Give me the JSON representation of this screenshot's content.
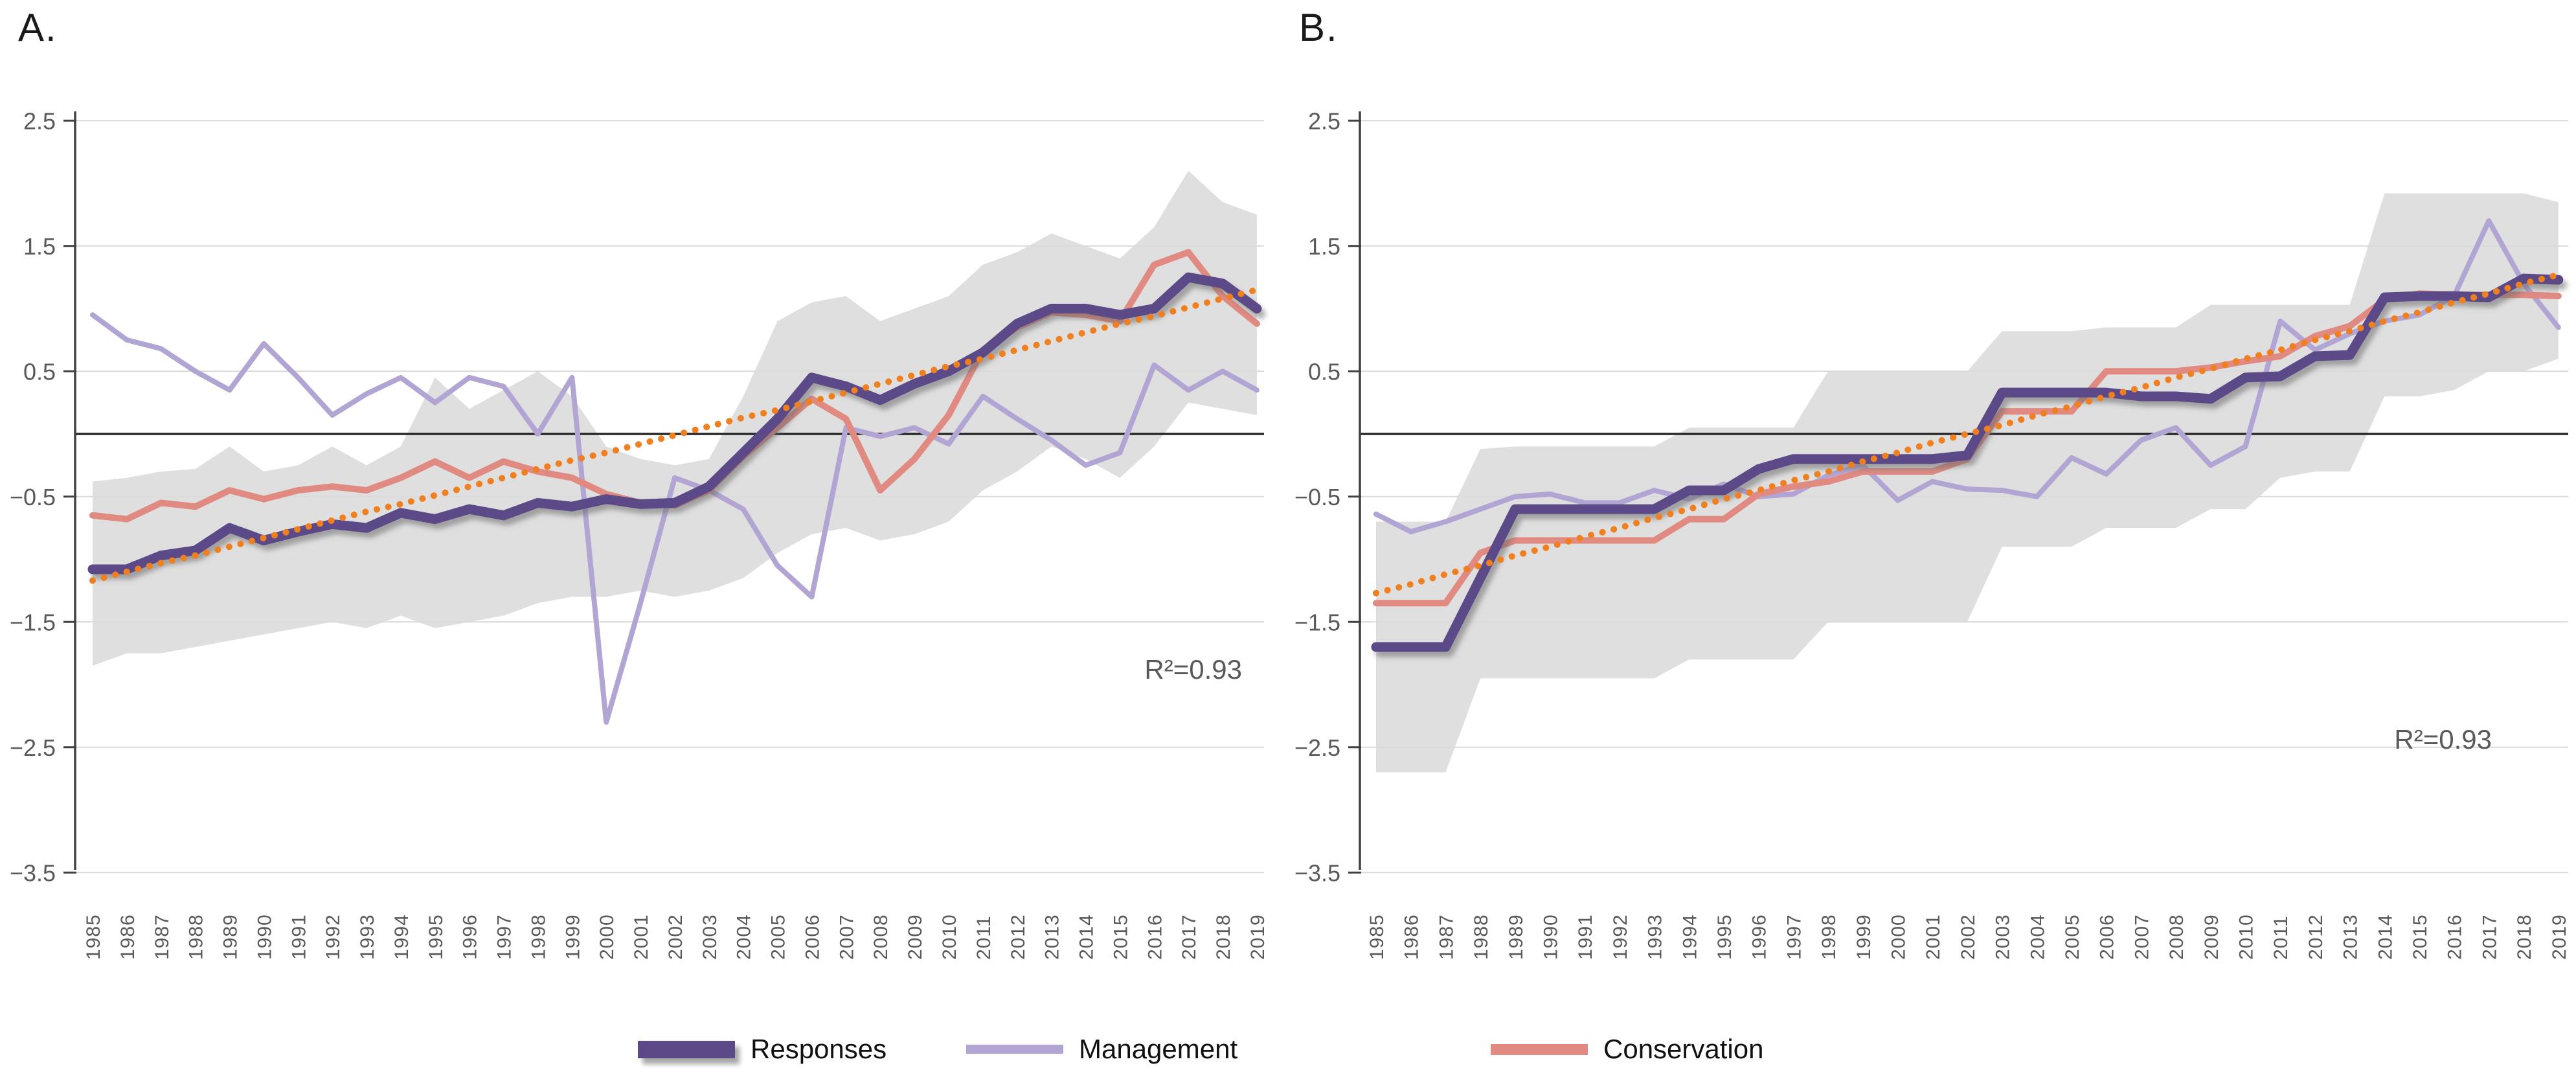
{
  "figure_bg": "#ffffff",
  "colors": {
    "responses": "#5b4a87",
    "management": "#b2a5d3",
    "conservation": "#e08a82",
    "trend": "#f0801f",
    "band": "#d9d9d9",
    "gridline": "#d9d9d9",
    "zero_line": "#262626",
    "axis": "#404040",
    "tick_text": "#595959"
  },
  "legend": {
    "position": "bottom-center",
    "items": [
      {
        "label": "Responses",
        "color": "#5b4a87"
      },
      {
        "label": "Management",
        "color": "#b2a5d3"
      },
      {
        "label": "Conservation",
        "color": "#e08a82"
      }
    ]
  },
  "chart_data": [
    {
      "type": "line",
      "panel_label": "A.",
      "r2_label": "R²=0.93",
      "xlabel": "",
      "ylabel": "",
      "ylim": [
        -3.5,
        2.5
      ],
      "grid": true,
      "yticks": [
        "2.5",
        "1.5",
        "0.5",
        "−0.5",
        "−1.5",
        "−2.5",
        "−3.5"
      ],
      "ytick_values": [
        2.5,
        1.5,
        0.5,
        -0.5,
        -1.5,
        -2.5,
        -3.5
      ],
      "x": [
        1985,
        1986,
        1987,
        1988,
        1989,
        1990,
        1991,
        1992,
        1993,
        1994,
        1995,
        1996,
        1997,
        1998,
        1999,
        2000,
        2001,
        2002,
        2003,
        2004,
        2005,
        2006,
        2007,
        2008,
        2009,
        2010,
        2011,
        2012,
        2013,
        2014,
        2015,
        2016,
        2017,
        2018,
        2019
      ],
      "band": {
        "color": "#d9d9d9",
        "opacity": 0.85,
        "top": [
          -0.38,
          -0.35,
          -0.3,
          -0.28,
          -0.1,
          -0.3,
          -0.25,
          -0.1,
          -0.25,
          -0.1,
          0.45,
          0.2,
          0.35,
          0.5,
          0.3,
          -0.1,
          -0.2,
          -0.25,
          -0.2,
          0.3,
          0.9,
          1.05,
          1.1,
          0.9,
          1.0,
          1.1,
          1.35,
          1.45,
          1.6,
          1.5,
          1.4,
          1.65,
          2.1,
          1.85,
          1.75
        ],
        "bottom": [
          -1.85,
          -1.75,
          -1.75,
          -1.7,
          -1.65,
          -1.6,
          -1.55,
          -1.5,
          -1.55,
          -1.45,
          -1.55,
          -1.5,
          -1.45,
          -1.35,
          -1.3,
          -1.3,
          -1.25,
          -1.3,
          -1.25,
          -1.15,
          -0.95,
          -0.8,
          -0.75,
          -0.85,
          -0.8,
          -0.7,
          -0.45,
          -0.3,
          -0.1,
          -0.2,
          -0.35,
          -0.1,
          0.25,
          0.2,
          0.15
        ]
      },
      "series": [
        {
          "name": "Management",
          "color": "#b2a5d3",
          "width": 8,
          "values": [
            0.95,
            0.75,
            0.68,
            0.5,
            0.35,
            0.72,
            0.45,
            0.15,
            0.32,
            0.45,
            0.25,
            0.45,
            0.38,
            0.0,
            0.45,
            -2.3,
            -1.35,
            -0.35,
            -0.45,
            -0.6,
            -1.05,
            -1.3,
            0.05,
            -0.02,
            0.05,
            -0.08,
            0.3,
            0.12,
            -0.05,
            -0.25,
            -0.15,
            0.55,
            0.35,
            0.5,
            0.35
          ]
        },
        {
          "name": "Conservation",
          "color": "#e08a82",
          "width": 10,
          "values": [
            -0.65,
            -0.68,
            -0.55,
            -0.58,
            -0.45,
            -0.52,
            -0.45,
            -0.42,
            -0.45,
            -0.35,
            -0.22,
            -0.35,
            -0.22,
            -0.3,
            -0.35,
            -0.48,
            -0.55,
            -0.57,
            -0.45,
            -0.18,
            0.05,
            0.28,
            0.12,
            -0.45,
            -0.2,
            0.15,
            0.67,
            0.85,
            0.97,
            0.95,
            0.9,
            1.35,
            1.45,
            1.1,
            0.88
          ]
        },
        {
          "name": "Responses",
          "color": "#5b4a87",
          "width": 15,
          "shadow": true,
          "values": [
            -1.08,
            -1.08,
            -0.97,
            -0.93,
            -0.75,
            -0.85,
            -0.78,
            -0.72,
            -0.75,
            -0.63,
            -0.68,
            -0.6,
            -0.65,
            -0.55,
            -0.58,
            -0.52,
            -0.56,
            -0.55,
            -0.42,
            -0.15,
            0.12,
            0.45,
            0.38,
            0.27,
            0.4,
            0.5,
            0.65,
            0.88,
            1.0,
            1.0,
            0.95,
            1.0,
            1.25,
            1.2,
            1.0
          ]
        },
        {
          "name": "Trend",
          "color": "#f0801f",
          "width": 10,
          "dotted": true,
          "values": [
            -1.17,
            -1.1,
            -1.03,
            -0.97,
            -0.9,
            -0.83,
            -0.76,
            -0.69,
            -0.62,
            -0.56,
            -0.49,
            -0.42,
            -0.35,
            -0.28,
            -0.21,
            -0.15,
            -0.08,
            -0.01,
            0.06,
            0.13,
            0.19,
            0.26,
            0.33,
            0.4,
            0.47,
            0.54,
            0.6,
            0.67,
            0.74,
            0.81,
            0.88,
            0.94,
            1.01,
            1.08,
            1.15
          ]
        }
      ]
    },
    {
      "type": "line",
      "panel_label": "B.",
      "r2_label": "R²=0.93",
      "xlabel": "",
      "ylabel": "",
      "ylim": [
        -3.5,
        2.5
      ],
      "grid": true,
      "yticks": [
        "2.5",
        "1.5",
        "0.5",
        "−0.5",
        "−1.5",
        "−2.5",
        "−3.5"
      ],
      "ytick_values": [
        2.5,
        1.5,
        0.5,
        -0.5,
        -1.5,
        -2.5,
        -3.5
      ],
      "x": [
        1985,
        1986,
        1987,
        1988,
        1989,
        1990,
        1991,
        1992,
        1993,
        1994,
        1995,
        1996,
        1997,
        1998,
        1999,
        2000,
        2001,
        2002,
        2003,
        2004,
        2005,
        2006,
        2007,
        2008,
        2009,
        2010,
        2011,
        2012,
        2013,
        2014,
        2015,
        2016,
        2017,
        2018,
        2019
      ],
      "band": {
        "color": "#d9d9d9",
        "opacity": 0.85,
        "top": [
          -0.7,
          -0.7,
          -0.7,
          -0.12,
          -0.1,
          -0.1,
          -0.1,
          -0.1,
          -0.1,
          0.05,
          0.05,
          0.05,
          0.05,
          0.5,
          0.5,
          0.5,
          0.5,
          0.5,
          0.82,
          0.82,
          0.82,
          0.85,
          0.85,
          0.85,
          1.03,
          1.03,
          1.03,
          1.03,
          1.03,
          1.92,
          1.92,
          1.92,
          1.92,
          1.92,
          1.85
        ],
        "bottom": [
          -2.7,
          -2.7,
          -2.7,
          -1.95,
          -1.95,
          -1.95,
          -1.95,
          -1.95,
          -1.95,
          -1.8,
          -1.8,
          -1.8,
          -1.8,
          -1.5,
          -1.5,
          -1.5,
          -1.5,
          -1.5,
          -0.9,
          -0.9,
          -0.9,
          -0.75,
          -0.75,
          -0.75,
          -0.6,
          -0.6,
          -0.35,
          -0.3,
          -0.3,
          0.3,
          0.3,
          0.35,
          0.5,
          0.5,
          0.6
        ]
      },
      "series": [
        {
          "name": "Management",
          "color": "#b2a5d3",
          "width": 8,
          "values": [
            -0.64,
            -0.78,
            -0.7,
            -0.6,
            -0.5,
            -0.48,
            -0.55,
            -0.55,
            -0.45,
            -0.52,
            -0.4,
            -0.5,
            -0.48,
            -0.33,
            -0.25,
            -0.53,
            -0.38,
            -0.44,
            -0.45,
            -0.5,
            -0.19,
            -0.32,
            -0.05,
            0.05,
            -0.25,
            -0.1,
            0.9,
            0.67,
            0.8,
            0.9,
            0.95,
            1.1,
            1.7,
            1.2,
            0.85
          ]
        },
        {
          "name": "Conservation",
          "color": "#e08a82",
          "width": 10,
          "values": [
            -1.35,
            -1.35,
            -1.35,
            -0.95,
            -0.85,
            -0.85,
            -0.85,
            -0.85,
            -0.85,
            -0.68,
            -0.68,
            -0.48,
            -0.42,
            -0.38,
            -0.3,
            -0.3,
            -0.3,
            -0.2,
            0.18,
            0.18,
            0.18,
            0.5,
            0.5,
            0.5,
            0.53,
            0.58,
            0.62,
            0.78,
            0.86,
            1.07,
            1.12,
            1.11,
            1.11,
            1.11,
            1.1
          ]
        },
        {
          "name": "Responses",
          "color": "#5b4a87",
          "width": 15,
          "shadow": true,
          "values": [
            -1.7,
            -1.7,
            -1.7,
            -1.15,
            -0.6,
            -0.6,
            -0.6,
            -0.6,
            -0.6,
            -0.45,
            -0.45,
            -0.28,
            -0.2,
            -0.2,
            -0.2,
            -0.2,
            -0.2,
            -0.17,
            0.33,
            0.33,
            0.33,
            0.33,
            0.3,
            0.3,
            0.28,
            0.45,
            0.46,
            0.62,
            0.63,
            1.09,
            1.1,
            1.1,
            1.09,
            1.24,
            1.23
          ]
        },
        {
          "name": "Trend",
          "color": "#f0801f",
          "width": 10,
          "dotted": true,
          "values": [
            -1.27,
            -1.2,
            -1.12,
            -1.05,
            -0.97,
            -0.9,
            -0.82,
            -0.75,
            -0.67,
            -0.6,
            -0.52,
            -0.45,
            -0.37,
            -0.3,
            -0.22,
            -0.15,
            -0.07,
            0.0,
            0.07,
            0.15,
            0.22,
            0.3,
            0.37,
            0.45,
            0.52,
            0.6,
            0.67,
            0.75,
            0.82,
            0.9,
            0.97,
            1.05,
            1.12,
            1.2,
            1.27
          ]
        }
      ]
    }
  ]
}
